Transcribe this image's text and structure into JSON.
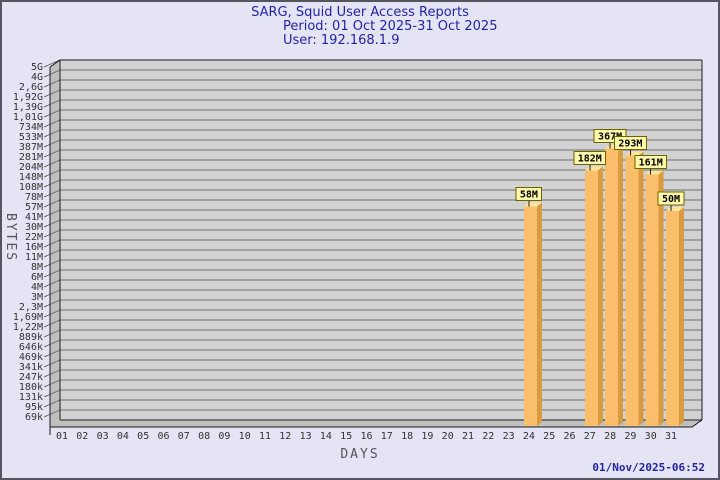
{
  "title": {
    "line1": "SARG, Squid User Access Reports",
    "line2": "Period: 01 Oct 2025-31 Oct 2025",
    "line3": "User: 192.168.1.9"
  },
  "footer": {
    "timestamp": "01/Nov/2025-06:52"
  },
  "chart_data": {
    "type": "bar",
    "title": "SARG, Squid User Access Reports",
    "subtitle": "Period: 01 Oct 2025-31 Oct 2025",
    "user": "192.168.1.9",
    "xlabel": "DAYS",
    "ylabel": "BYTES",
    "scale": "logarithmic",
    "grid": true,
    "legend": "none",
    "x_ticks": [
      "01",
      "02",
      "03",
      "04",
      "05",
      "06",
      "07",
      "08",
      "09",
      "10",
      "11",
      "12",
      "13",
      "14",
      "15",
      "16",
      "17",
      "18",
      "19",
      "20",
      "21",
      "22",
      "23",
      "24",
      "25",
      "26",
      "27",
      "28",
      "29",
      "30",
      "31"
    ],
    "y_ticks": [
      "5G",
      "4G",
      "2,6G",
      "1,92G",
      "1,39G",
      "1,01G",
      "734M",
      "533M",
      "387M",
      "281M",
      "204M",
      "148M",
      "108M",
      "78M",
      "57M",
      "41M",
      "30M",
      "22M",
      "16M",
      "11M",
      "8M",
      "6M",
      "4M",
      "3M",
      "2,3M",
      "1,69M",
      "1,22M",
      "889k",
      "646k",
      "469k",
      "341k",
      "247k",
      "180k",
      "131k",
      "95k",
      "69k"
    ],
    "y_tick_bytes": [
      5000000000,
      4000000000,
      2600000000,
      1920000000,
      1390000000,
      1010000000,
      734000000,
      533000000,
      387000000,
      281000000,
      204000000,
      148000000,
      108000000,
      78000000,
      57000000,
      41000000,
      30000000,
      22000000,
      16000000,
      11000000,
      8000000,
      6000000,
      4000000,
      3000000,
      2300000,
      1690000,
      1220000,
      889000,
      646000,
      469000,
      341000,
      247000,
      180000,
      131000,
      95000,
      69000
    ],
    "bars": [
      {
        "day": "24",
        "label": "58M",
        "bytes": 58000000
      },
      {
        "day": "27",
        "label": "182M",
        "bytes": 182000000
      },
      {
        "day": "28",
        "label": "367M",
        "bytes": 367000000
      },
      {
        "day": "29",
        "label": "293M",
        "bytes": 293000000
      },
      {
        "day": "30",
        "label": "161M",
        "bytes": 161000000
      },
      {
        "day": "31",
        "label": "50M",
        "bytes": 50000000
      }
    ],
    "colors": {
      "background": "#e4e4f4",
      "plot_background": "#d2d2d2",
      "wall": "#bfbfbf",
      "grid_line": "#707070",
      "axis_line": "#1c1c1c",
      "bar_face": "#fbbf6c",
      "bar_side": "#d89b3f",
      "bar_top": "#ffe49a",
      "value_box_fill": "#fff8a8",
      "value_box_border": "#6b6400",
      "tick_text": "#333333",
      "title_text": "#2424a3"
    }
  }
}
